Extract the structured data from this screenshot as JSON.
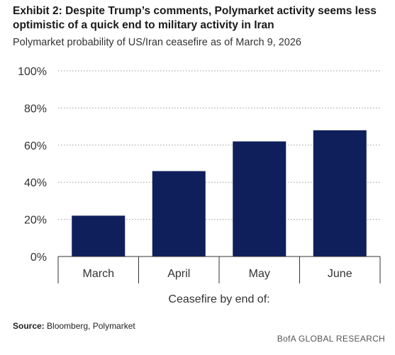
{
  "header": {
    "title": "Exhibit 2: Despite Trump’s comments, Polymarket activity seems less optimistic of a quick end to military activity in Iran",
    "subtitle": "Polymarket probability of US/Iran ceasefire as of March 9, 2026"
  },
  "footer": {
    "source_label": "Source:",
    "source_text": " Bloomberg, Polymarket",
    "branding": "BofA GLOBAL RESEARCH"
  },
  "chart_data": {
    "type": "bar",
    "categories": [
      "March",
      "April",
      "May",
      "June"
    ],
    "values": [
      22,
      46,
      62,
      68
    ],
    "xlabel": "Ceasefire by end of:",
    "ylabel": "",
    "ylim": [
      0,
      100
    ],
    "yticks": [
      "0%",
      "20%",
      "40%",
      "60%",
      "80%",
      "100%"
    ],
    "grid": true,
    "bar_color": "#0f1f5c"
  }
}
